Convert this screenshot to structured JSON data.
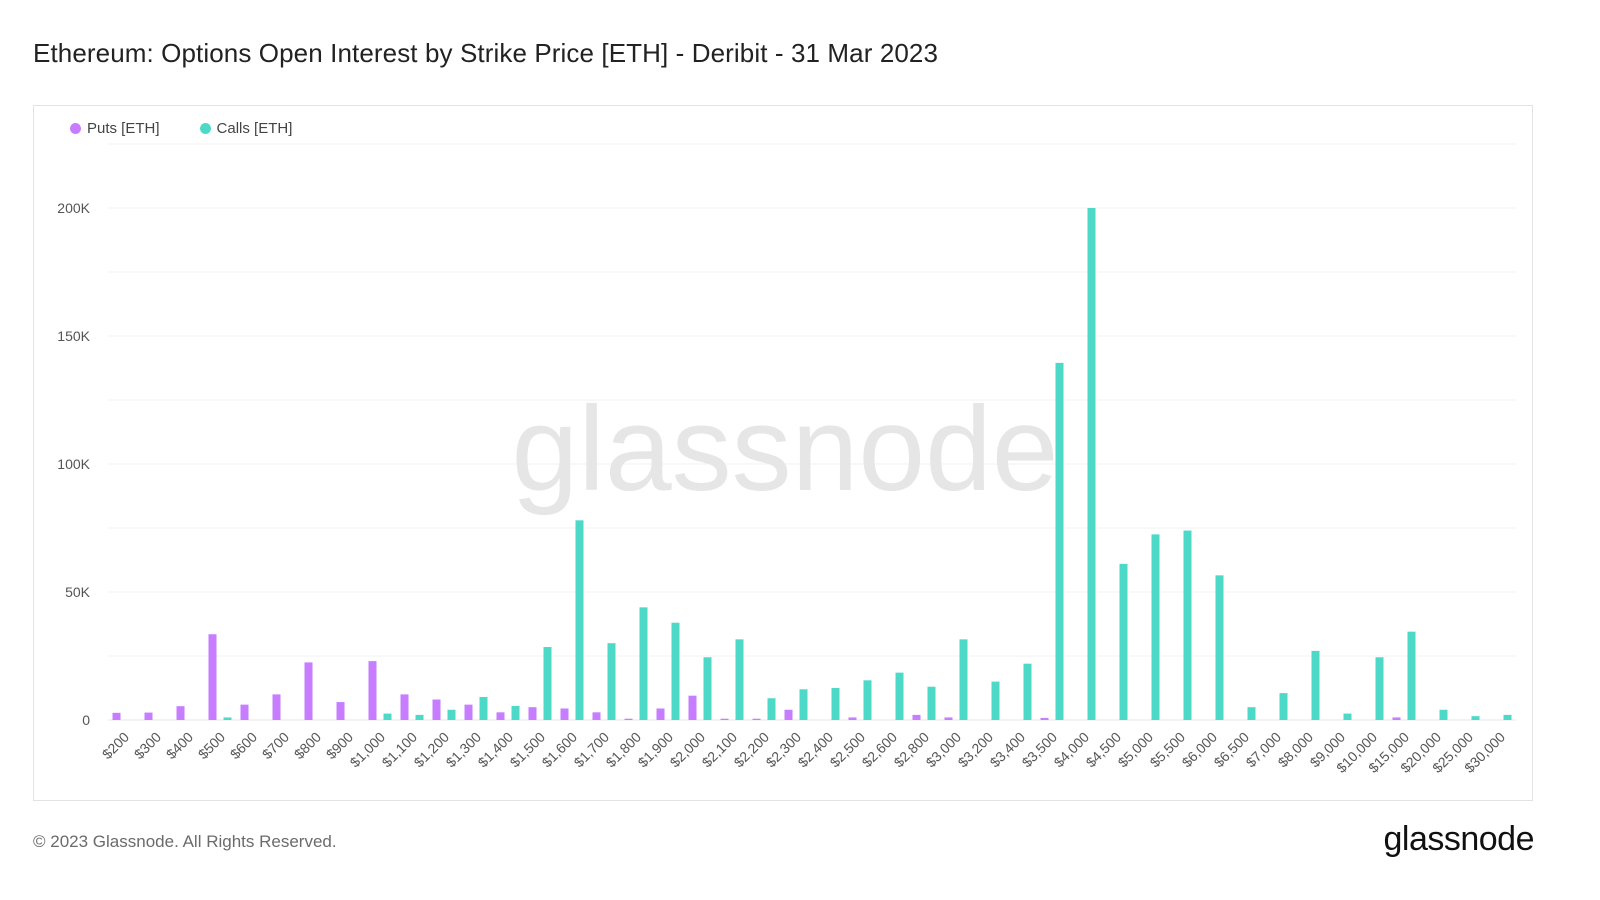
{
  "title": "Ethereum: Options Open Interest by Strike Price [ETH] - Deribit - 31 Mar 2023",
  "footer": {
    "copyright": "© 2023 Glassnode. All Rights Reserved.",
    "brand": "glassnode"
  },
  "watermark": "glassnode",
  "colors": {
    "puts": "#c77dff",
    "calls": "#4dd9c7"
  },
  "chart_data": {
    "type": "bar",
    "ylim": [
      0,
      200000
    ],
    "yticks": [
      0,
      50000,
      100000,
      150000,
      200000
    ],
    "ytick_labels": [
      "0",
      "50K",
      "100K",
      "150K",
      "200K"
    ],
    "legend_position": "top-left",
    "grid": true,
    "categories": [
      "$200",
      "$300",
      "$400",
      "$500",
      "$600",
      "$700",
      "$800",
      "$900",
      "$1,000",
      "$1,100",
      "$1,200",
      "$1,300",
      "$1,400",
      "$1,500",
      "$1,600",
      "$1,700",
      "$1,800",
      "$1,900",
      "$2,000",
      "$2,100",
      "$2,200",
      "$2,300",
      "$2,400",
      "$2,500",
      "$2,600",
      "$2,800",
      "$3,000",
      "$3,200",
      "$3,400",
      "$3,500",
      "$4,000",
      "$4,500",
      "$5,000",
      "$5,500",
      "$6,000",
      "$6,500",
      "$7,000",
      "$8,000",
      "$9,000",
      "$10,000",
      "$15,000",
      "$20,000",
      "$25,000",
      "$30,000"
    ],
    "series": [
      {
        "name": "Puts [ETH]",
        "values": [
          2800,
          2900,
          5400,
          33500,
          6000,
          10000,
          22500,
          7000,
          23000,
          10000,
          8000,
          6000,
          3000,
          5000,
          4500,
          3000,
          500,
          4500,
          9500,
          500,
          500,
          4000,
          0,
          1000,
          0,
          2000,
          1000,
          0,
          0,
          800,
          0,
          0,
          0,
          0,
          0,
          0,
          0,
          0,
          0,
          0,
          1000,
          0,
          0,
          0
        ]
      },
      {
        "name": "Calls [ETH]",
        "values": [
          0,
          0,
          0,
          1000,
          0,
          0,
          0,
          0,
          2500,
          2000,
          4000,
          9000,
          5500,
          28500,
          78000,
          30000,
          44000,
          38000,
          24500,
          31500,
          8500,
          12000,
          12500,
          15500,
          18500,
          13000,
          31500,
          15000,
          22000,
          139500,
          200000,
          61000,
          72500,
          74000,
          56500,
          5000,
          10500,
          27000,
          2500,
          24500,
          34500,
          4000,
          1500,
          2000
        ]
      }
    ]
  }
}
